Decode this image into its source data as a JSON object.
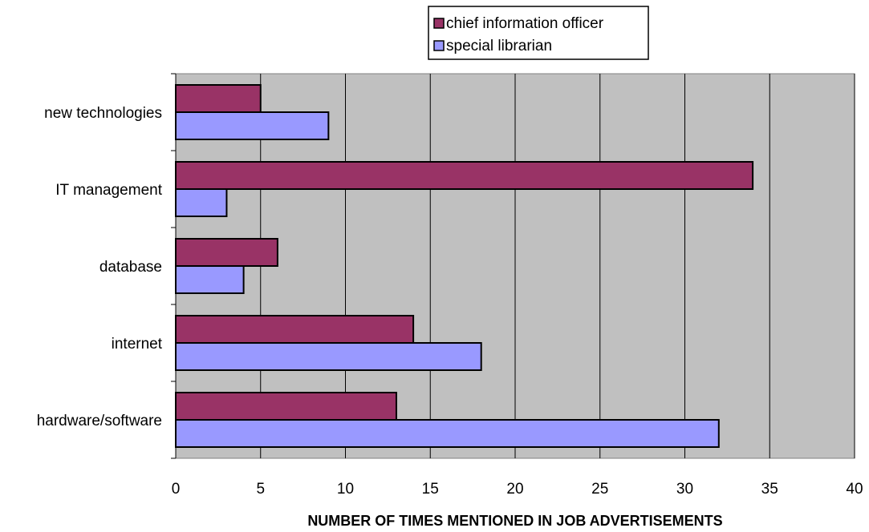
{
  "chart_data": {
    "type": "bar",
    "orientation": "horizontal",
    "categories": [
      "new technologies",
      "IT management",
      "database",
      "internet",
      "hardware/software"
    ],
    "series": [
      {
        "name": "chief information officer",
        "color": "#993366",
        "values": [
          5,
          34,
          6,
          14,
          13
        ]
      },
      {
        "name": "special librarian",
        "color": "#9999ff",
        "values": [
          9,
          3,
          4,
          18,
          32
        ]
      }
    ],
    "title": "",
    "xlabel": "NUMBER OF TIMES MENTIONED IN JOB ADVERTISEMENTS",
    "ylabel": "",
    "xlim": [
      0,
      40
    ],
    "xticks": [
      0,
      5,
      10,
      15,
      20,
      25,
      30,
      35,
      40
    ],
    "grid": "vertical",
    "plot_background": "#c0c0c0",
    "legend_position": "top"
  }
}
